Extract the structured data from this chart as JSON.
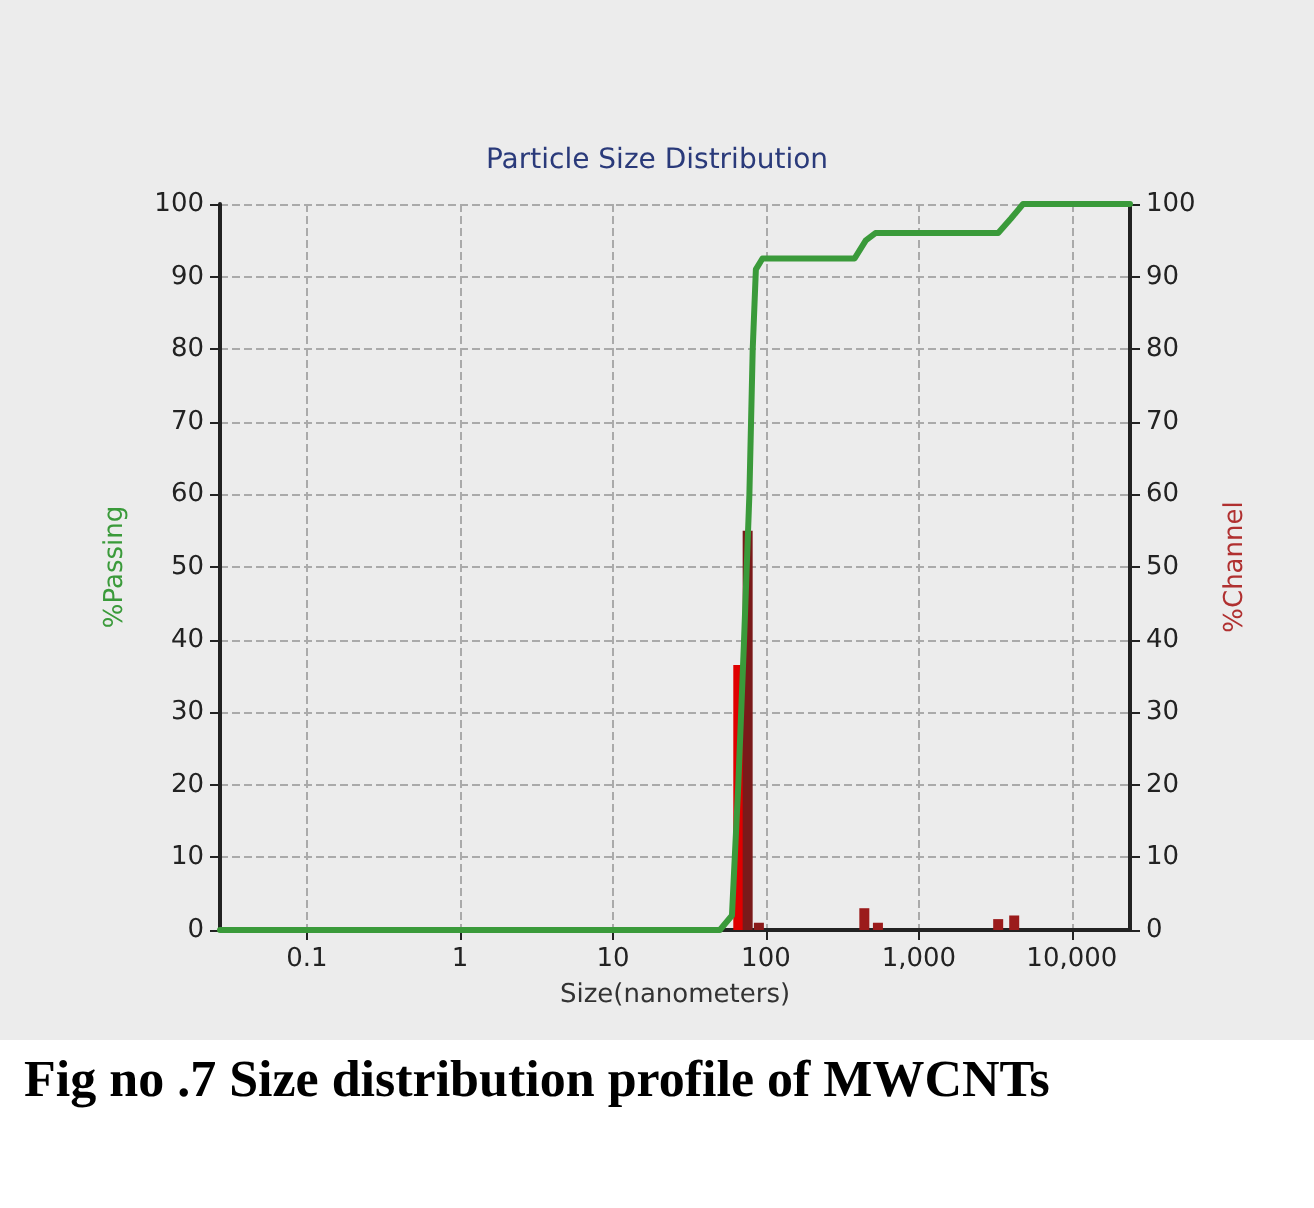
{
  "chart_data": {
    "type": "line",
    "title": "Particle Size Distribution",
    "xlabel": "Size(nanometers)",
    "ylabel": "%Passing",
    "y2label": "%Channel",
    "log": "x",
    "grid": true,
    "marker": "none",
    "xlim": [
      0.027,
      24000
    ],
    "xticks": [
      {
        "value": 0.1,
        "label": "0.1"
      },
      {
        "value": 1,
        "label": "1"
      },
      {
        "value": 10,
        "label": "10"
      },
      {
        "value": 100,
        "label": "100"
      },
      {
        "value": 1000,
        "label": "1,000"
      },
      {
        "value": 10000,
        "label": "10,000"
      }
    ],
    "ylim": [
      0,
      100
    ],
    "yticks": [
      0,
      10,
      20,
      30,
      40,
      50,
      60,
      70,
      80,
      90,
      100
    ],
    "y2lim": [
      0,
      100
    ],
    "y2ticks": [
      0,
      10,
      20,
      30,
      40,
      50,
      60,
      70,
      80,
      90,
      100
    ],
    "series": [
      {
        "type": "bar",
        "axis": "y2",
        "x": [
          66,
          76,
          90,
          440,
          540,
          3300,
          4200
        ],
        "values": [
          36.5,
          55,
          1,
          3,
          1,
          1.5,
          2
        ],
        "colors": [
          "#e00000",
          "#7a1a1a",
          "#8b1a1a",
          "#9b1b1b",
          "#9b1b1b",
          "#9b1b1b",
          "#9b1b1b"
        ]
      },
      {
        "color": "#3a9a3a",
        "x": [
          0.027,
          50,
          60,
          66,
          72,
          78,
          82,
          86,
          95,
          380,
          450,
          520,
          3300,
          4000,
          4800,
          24000
        ],
        "values": [
          0,
          0,
          2,
          20,
          40,
          60,
          80,
          91,
          92.5,
          92.5,
          95,
          96,
          96,
          98,
          100,
          100
        ]
      }
    ],
    "annotations": [
      "Fig no .7 Size distribution profile of MWCNTs"
    ]
  }
}
